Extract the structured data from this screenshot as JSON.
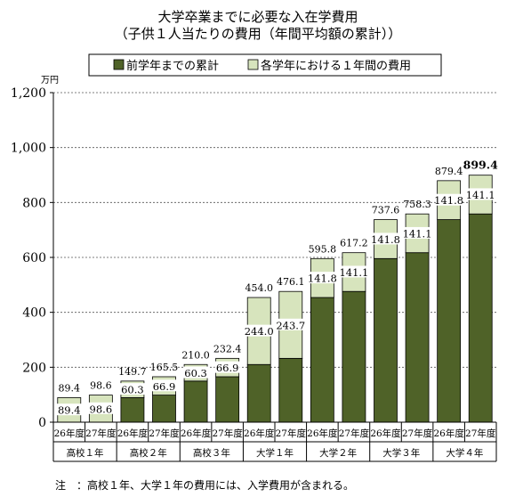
{
  "chart_data": {
    "type": "bar",
    "stacked": true,
    "title": "大学卒業までに必要な入在学費用",
    "subtitle": "（子供１人当たりの費用（年間平均額の累計））",
    "y_unit": "万円",
    "ylim": [
      0,
      1200
    ],
    "y_ticks": [
      0,
      200,
      400,
      600,
      800,
      1000,
      1200
    ],
    "y_tick_labels": [
      "0",
      "200",
      "400",
      "600",
      "800",
      "1,000",
      "1,200"
    ],
    "grid": true,
    "legend_position": "top",
    "categories": [
      "26年度",
      "27年度",
      "26年度",
      "27年度",
      "26年度",
      "27年度",
      "26年度",
      "27年度",
      "26年度",
      "27年度",
      "26年度",
      "27年度",
      "26年度",
      "27年度"
    ],
    "groups": [
      "高校１年",
      "高校２年",
      "高校３年",
      "大学１年",
      "大学２年",
      "大学３年",
      "大学４年"
    ],
    "series": [
      {
        "name": "前学年までの累計",
        "color": "#4f6228",
        "values": [
          0,
          0,
          89.4,
          98.6,
          149.7,
          165.5,
          210.0,
          232.4,
          454.0,
          476.1,
          595.8,
          617.2,
          737.6,
          758.3
        ]
      },
      {
        "name": "各学年における１年間の費用",
        "color": "#d7e4bd",
        "values": [
          89.4,
          98.6,
          60.3,
          66.9,
          60.3,
          66.9,
          244.0,
          243.7,
          141.8,
          141.1,
          141.8,
          141.1,
          141.8,
          141.1
        ]
      }
    ],
    "segment_labels": [
      "89.4",
      "98.6",
      "60.3",
      "66.9",
      "60.3",
      "66.9",
      "244.0",
      "243.7",
      "141.8",
      "141.1",
      "141.8",
      "141.1",
      "141.8",
      "141.1"
    ],
    "totals": [
      "89.4",
      "98.6",
      "149.7",
      "165.5",
      "210.0",
      "232.4",
      "454.0",
      "476.1",
      "595.8",
      "617.2",
      "737.6",
      "758.3",
      "879.4",
      "899.4"
    ],
    "note": "注　：高校１年、大学１年の費用には、入学費用が含まれる。"
  }
}
